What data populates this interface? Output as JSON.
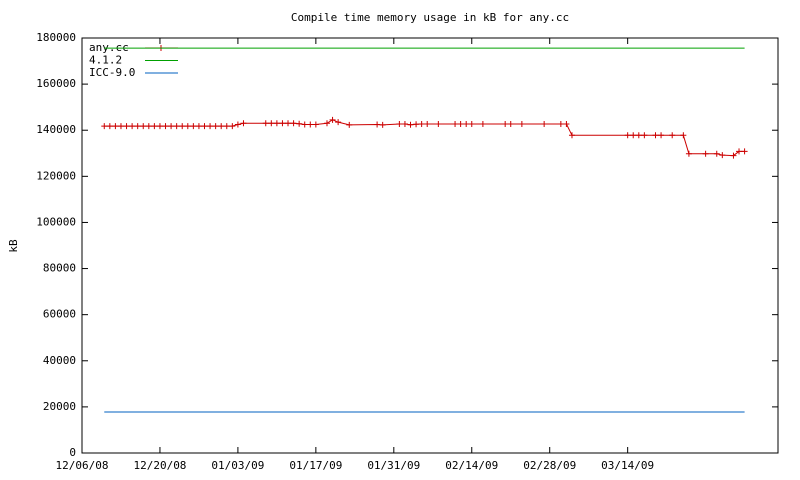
{
  "chart_data": {
    "type": "line",
    "title": "Compile time memory usage in kB for any.cc",
    "y_label": "kB",
    "xlim": [
      "12/06/08",
      "04/10/09"
    ],
    "xticks": [
      "12/06/08",
      "12/20/08",
      "01/03/09",
      "01/17/09",
      "01/31/09",
      "02/14/09",
      "02/28/09",
      "03/14/09"
    ],
    "ylim": [
      0,
      180000
    ],
    "yticks": [
      0,
      20000,
      40000,
      60000,
      80000,
      100000,
      120000,
      140000,
      160000,
      180000
    ],
    "legend": "top-left",
    "series": [
      {
        "name": "any.cc",
        "color": "#cc0000",
        "points": true,
        "x": [
          "12/10/08",
          "12/11/08",
          "12/12/08",
          "12/13/08",
          "12/14/08",
          "12/15/08",
          "12/16/08",
          "12/17/08",
          "12/18/08",
          "12/19/08",
          "12/20/08",
          "12/21/08",
          "12/22/08",
          "12/23/08",
          "12/24/08",
          "12/25/08",
          "12/26/08",
          "12/27/08",
          "12/28/08",
          "12/29/08",
          "12/30/08",
          "12/31/08",
          "01/01/09",
          "01/02/09",
          "01/03/09",
          "01/04/09",
          "01/08/09",
          "01/09/09",
          "01/10/09",
          "01/11/09",
          "01/12/09",
          "01/13/09",
          "01/14/09",
          "01/15/09",
          "01/16/09",
          "01/17/09",
          "01/19/09",
          "01/20/09",
          "01/21/09",
          "01/23/09",
          "01/28/09",
          "01/29/09",
          "02/01/09",
          "02/02/09",
          "02/03/09",
          "02/04/09",
          "02/05/09",
          "02/06/09",
          "02/08/09",
          "02/11/09",
          "02/12/09",
          "02/13/09",
          "02/14/09",
          "02/16/09",
          "02/20/09",
          "02/21/09",
          "02/23/09",
          "02/27/09",
          "03/02/09",
          "03/03/09",
          "03/04/09",
          "03/14/09",
          "03/15/09",
          "03/16/09",
          "03/17/09",
          "03/19/09",
          "03/20/09",
          "03/22/09",
          "03/24/09",
          "03/25/09",
          "03/28/09",
          "03/30/09",
          "03/31/09",
          "04/02/09",
          "04/03/09",
          "04/04/09"
        ],
        "values": [
          141800,
          141800,
          141800,
          141800,
          141800,
          141800,
          141800,
          141800,
          141800,
          141800,
          141800,
          141800,
          141800,
          141800,
          141800,
          141800,
          141800,
          141800,
          141800,
          141800,
          141800,
          141800,
          141800,
          141800,
          142500,
          143000,
          143000,
          143000,
          143000,
          143000,
          143000,
          143000,
          142800,
          142500,
          142500,
          142500,
          143000,
          144500,
          143500,
          142300,
          142500,
          142300,
          142700,
          142700,
          142400,
          142600,
          142700,
          142700,
          142700,
          142700,
          142700,
          142700,
          142700,
          142700,
          142700,
          142700,
          142700,
          142700,
          142700,
          142700,
          137800,
          137800,
          137800,
          137800,
          137800,
          137800,
          137800,
          137800,
          137800,
          129800,
          129800,
          129800,
          129200,
          129000,
          130800,
          130800
        ]
      },
      {
        "name": "4.1.2",
        "color": "#00a000",
        "points": false,
        "x": [
          "12/10/08",
          "04/04/09"
        ],
        "values": [
          175600,
          175600
        ]
      },
      {
        "name": "ICC-9.0",
        "color": "#0060c0",
        "points": false,
        "x": [
          "12/10/08",
          "04/04/09"
        ],
        "values": [
          17800,
          17800
        ]
      }
    ]
  }
}
